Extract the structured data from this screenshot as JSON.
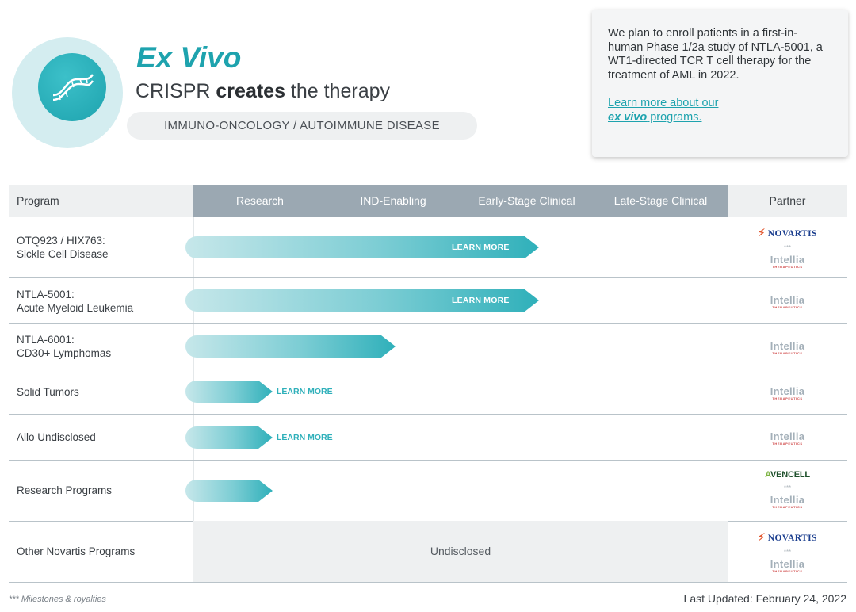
{
  "header": {
    "title": "Ex Vivo",
    "subtitle_pre": "CRISPR ",
    "subtitle_bold": "creates",
    "subtitle_post": " the therapy",
    "therapeutic_area": "IMMUNO-ONCOLOGY / AUTOIMMUNE DISEASE",
    "icon": "dna-icon"
  },
  "info_card": {
    "text": "We plan to enroll patients in a first-in-human Phase 1/2a study of NTLA-5001, a WT1-directed TCR T cell therapy for the treatment of AML in 2022.",
    "link_line1": "Learn more about our",
    "link_italic": "ex vivo",
    "link_rest": " programs."
  },
  "table": {
    "headers": {
      "program": "Program",
      "stages": [
        "Research",
        "IND-Enabling",
        "Early-Stage Clinical",
        "Late-Stage Clinical"
      ],
      "partner": "Partner"
    },
    "rows": [
      {
        "name_line1": "OTQ923 / HIX763:",
        "name_line2": "Sickle Cell Disease",
        "progress_stages": 2.1,
        "bar_label": "LEARN MORE",
        "partners": [
          "Novartis",
          "Intellia"
        ]
      },
      {
        "name_line1": "NTLA-5001:",
        "name_line2": "Acute Myeloid Leukemia",
        "progress_stages": 2.1,
        "bar_label": "LEARN MORE",
        "partners": [
          "Intellia"
        ]
      },
      {
        "name_line1": "NTLA-6001:",
        "name_line2": "CD30+ Lymphomas",
        "progress_stages": 1.5,
        "bar_label": "",
        "partners": [
          "Intellia"
        ]
      },
      {
        "name_line1": "Solid Tumors",
        "name_line2": "",
        "progress_stages": 0.6,
        "bar_label": "LEARN MORE",
        "partners": [
          "Intellia"
        ]
      },
      {
        "name_line1": "Allo Undisclosed",
        "name_line2": "",
        "progress_stages": 0.6,
        "bar_label": "LEARN MORE",
        "partners": [
          "Intellia"
        ]
      },
      {
        "name_line1": "Research Programs",
        "name_line2": "",
        "progress_stages": 0.6,
        "bar_label": "",
        "partners": [
          "Avencell",
          "Intellia"
        ]
      },
      {
        "name_line1": "Other Novartis Programs",
        "name_line2": "",
        "status": "Undisclosed",
        "partners": [
          "Novartis",
          "Intellia"
        ]
      }
    ]
  },
  "logos": {
    "novartis": "NOVARTIS",
    "intellia": "Intellia",
    "intellia_sub": "THERAPEUTICS",
    "avencell": "VENCELL",
    "avencell_prefix": "A",
    "milestone_marker": "***"
  },
  "footer": {
    "footnote": "*** Milestones & royalties",
    "last_updated": "Last Updated: February 24, 2022"
  },
  "colors": {
    "brand_teal": "#1ea3ae",
    "header_stage_bg": "#9ba8b2",
    "novartis_blue": "#1c3f8f",
    "novartis_flame": "#e2542b"
  }
}
